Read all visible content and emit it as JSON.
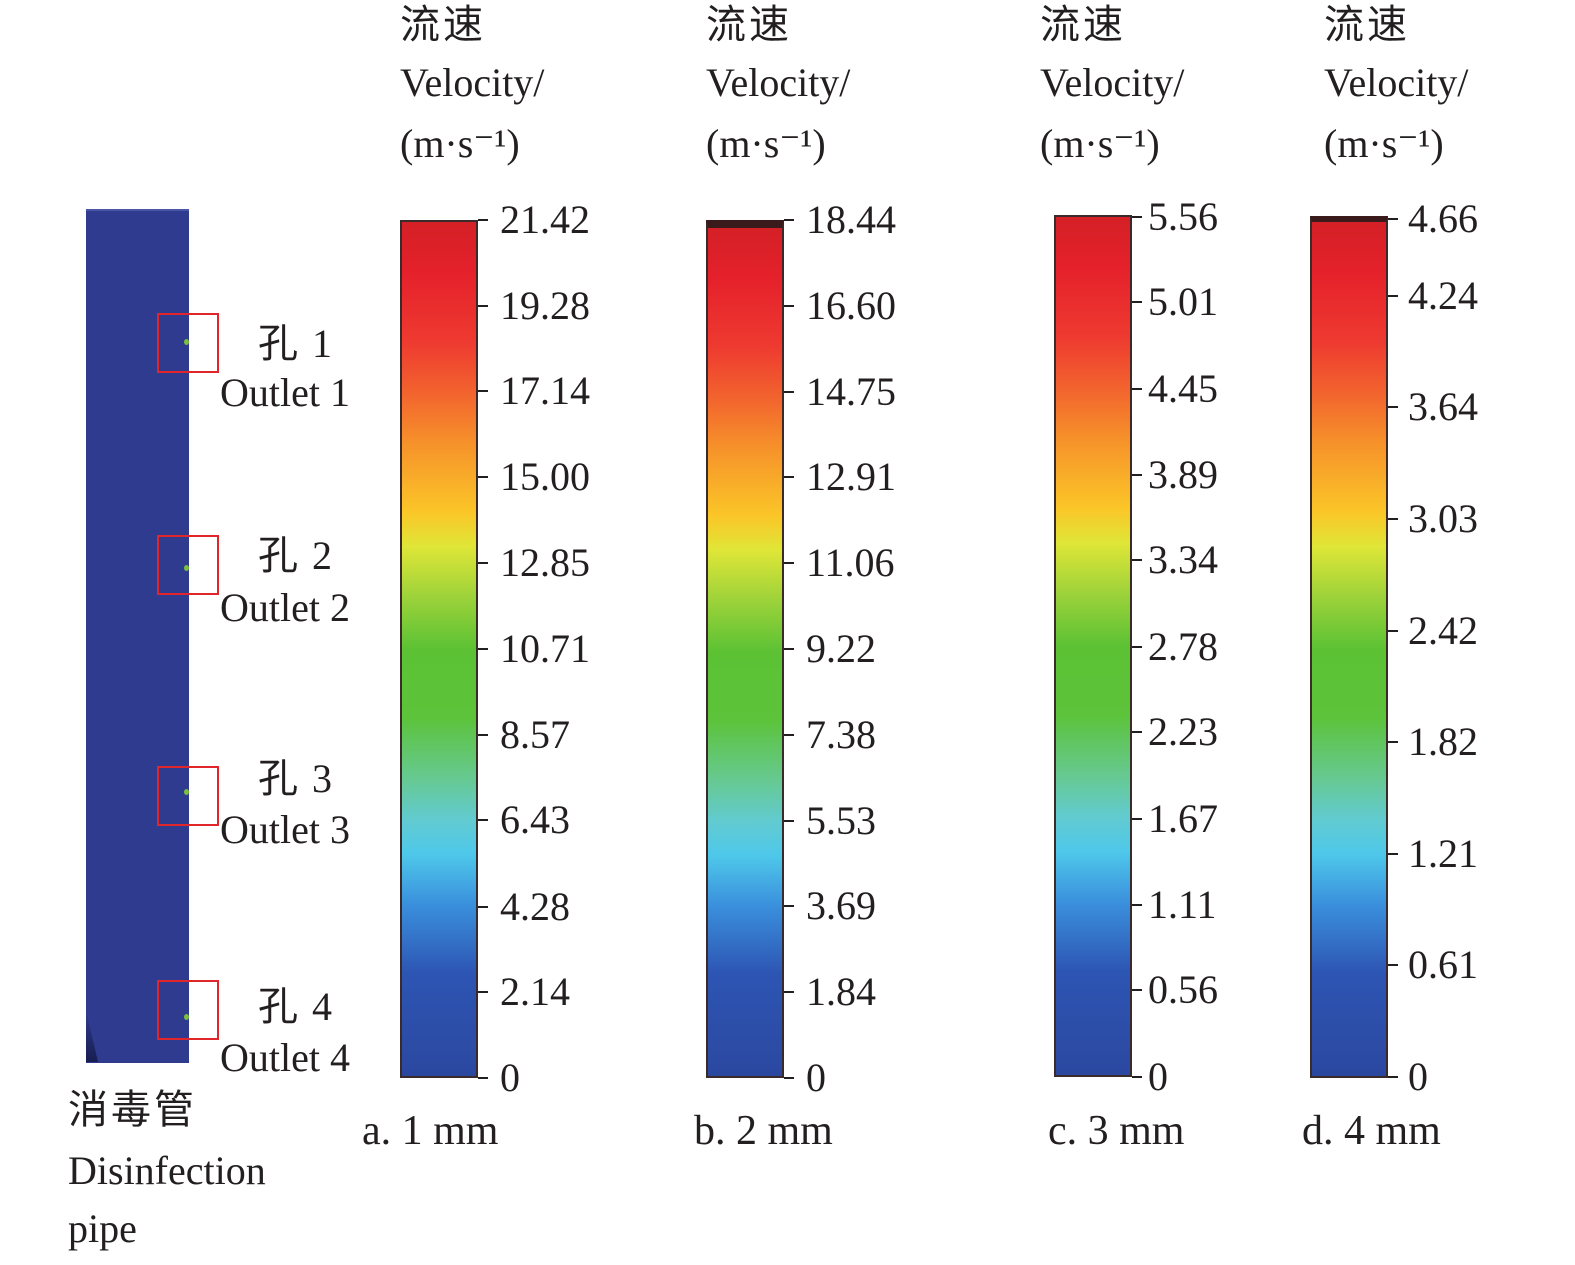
{
  "pipe": {
    "label_zh": "消毒管",
    "label_en_line1": "Disinfection",
    "label_en_line2": "pipe",
    "outlets": [
      {
        "zh": "孔 1",
        "en": "Outlet 1"
      },
      {
        "zh": "孔 2",
        "en": "Outlet 2"
      },
      {
        "zh": "孔 3",
        "en": "Outlet 3"
      },
      {
        "zh": "孔 4",
        "en": "Outlet 4"
      }
    ]
  },
  "colorbars": [
    {
      "title_zh": "流速",
      "title_en": "Velocity/",
      "unit": "(m·s⁻¹)",
      "caption": "a. 1 mm",
      "ticks": [
        "21.42",
        "19.28",
        "17.14",
        "15.00",
        "12.85",
        "10.71",
        "8.57",
        "6.43",
        "4.28",
        "2.14",
        "0"
      ],
      "tick_values": [
        21.42,
        19.28,
        17.14,
        15.0,
        12.85,
        10.71,
        8.57,
        6.43,
        4.28,
        2.14,
        0
      ]
    },
    {
      "title_zh": "流速",
      "title_en": "Velocity/",
      "unit": "(m·s⁻¹)",
      "caption": "b. 2 mm",
      "ticks": [
        "18.44",
        "16.60",
        "14.75",
        "12.91",
        "11.06",
        "9.22",
        "7.38",
        "5.53",
        "3.69",
        "1.84",
        "0"
      ],
      "tick_values": [
        18.44,
        16.6,
        14.75,
        12.91,
        11.06,
        9.22,
        7.38,
        5.53,
        3.69,
        1.84,
        0
      ]
    },
    {
      "title_zh": "流速",
      "title_en": "Velocity/",
      "unit": "(m·s⁻¹)",
      "caption": "c. 3 mm",
      "ticks": [
        "5.56",
        "5.01",
        "4.45",
        "3.89",
        "3.34",
        "2.78",
        "2.23",
        "1.67",
        "1.11",
        "0.56",
        "0"
      ],
      "tick_values": [
        5.56,
        5.01,
        4.45,
        3.89,
        3.34,
        2.78,
        2.23,
        1.67,
        1.11,
        0.56,
        0
      ]
    },
    {
      "title_zh": "流速",
      "title_en": "Velocity/",
      "unit": "(m·s⁻¹)",
      "caption": "d. 4 mm",
      "ticks": [
        "4.66",
        "4.24",
        "3.64",
        "3.03",
        "2.42",
        "1.82",
        "1.21",
        "0.61",
        "0"
      ],
      "tick_values": [
        4.66,
        4.24,
        3.64,
        3.03,
        2.42,
        1.82,
        1.21,
        0.61,
        0
      ]
    }
  ],
  "colors": {
    "pipe": "#2f3b8f",
    "outlet_box": "#e0262b",
    "outlet_dot": "#7bbf3a",
    "text": "#231f20"
  }
}
